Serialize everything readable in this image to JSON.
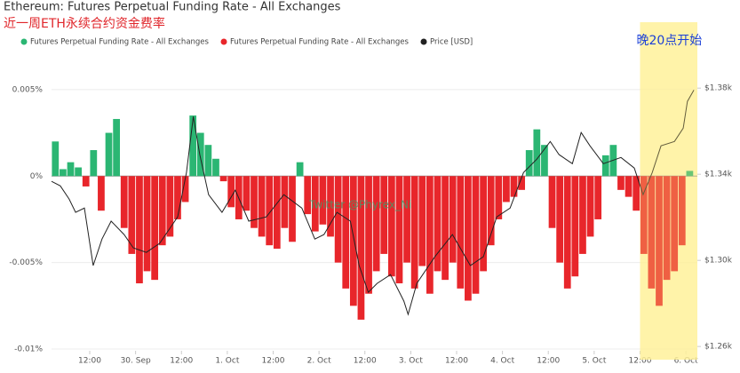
{
  "chart_data": {
    "type": "bar",
    "title": "Ethereum: Futures Perpetual Funding Rate - All Exchanges",
    "subtitle": "近一周ETH永续合约资金费率",
    "annotations": [
      {
        "text": "晚20点开始",
        "x_range": [
          156,
          171
        ]
      },
      {
        "text": "Twitter @Phyrex_Ni"
      }
    ],
    "x": [
      3,
      5,
      7,
      9,
      11,
      13,
      15,
      17,
      19,
      21,
      23,
      25,
      27,
      29,
      31,
      33,
      35,
      37,
      39,
      41,
      43,
      45,
      47,
      49,
      51,
      53,
      55,
      57,
      59,
      61,
      63,
      65,
      67,
      69,
      71,
      73,
      75,
      77,
      79,
      81,
      83,
      85,
      87,
      89,
      91,
      93,
      95,
      97,
      99,
      101,
      103,
      105,
      107,
      109,
      111,
      113,
      115,
      117,
      119,
      121,
      123,
      125,
      127,
      129,
      131,
      133,
      135,
      137,
      139,
      141,
      143,
      145,
      147,
      149,
      151,
      153,
      155,
      157,
      159,
      161,
      163,
      165,
      167,
      169
    ],
    "xlim": [
      2,
      171
    ],
    "xticks": [
      {
        "value": 12,
        "label": "12:00"
      },
      {
        "value": 24,
        "label": "30. Sep"
      },
      {
        "value": 36,
        "label": "12:00"
      },
      {
        "value": 48,
        "label": "1. Oct"
      },
      {
        "value": 60,
        "label": "12:00"
      },
      {
        "value": 72,
        "label": "2. Oct"
      },
      {
        "value": 84,
        "label": "12:00"
      },
      {
        "value": 96,
        "label": "3. Oct"
      },
      {
        "value": 108,
        "label": "12:00"
      },
      {
        "value": 120,
        "label": "4. Oct"
      },
      {
        "value": 132,
        "label": "12:00"
      },
      {
        "value": 144,
        "label": "5. Oct"
      },
      {
        "value": 156,
        "label": "12:00"
      },
      {
        "value": 168,
        "label": "6. Oct"
      }
    ],
    "ylim": [
      -0.0101,
      0.0072
    ],
    "yticks": [
      {
        "value": 0.005,
        "label": "0.005%"
      },
      {
        "value": 0,
        "label": "0%"
      },
      {
        "value": -0.005,
        "label": "-0.005%"
      },
      {
        "value": -0.01,
        "label": "-0.01%"
      }
    ],
    "y2lim": [
      1258,
      1397
    ],
    "y2ticks": [
      {
        "value": 1380,
        "label": "$1.38k"
      },
      {
        "value": 1340,
        "label": "$1.34k"
      },
      {
        "value": 1300,
        "label": "$1.30k"
      },
      {
        "value": 1260,
        "label": "$1.26k"
      }
    ],
    "grid": true,
    "series": [
      {
        "name": "Futures Perpetual Funding Rate - All Exchanges",
        "type": "bar",
        "color": "#2bb673",
        "values": [
          0.002,
          0.0004,
          0.0008,
          0.0005,
          null,
          0.0015,
          null,
          0.0025,
          0.0033,
          null,
          null,
          null,
          null,
          null,
          null,
          null,
          null,
          null,
          0.0035,
          0.0025,
          0.0018,
          0.001,
          null,
          null,
          null,
          null,
          null,
          null,
          null,
          null,
          null,
          null,
          0.0008,
          null,
          null,
          null,
          null,
          null,
          null,
          null,
          null,
          null,
          null,
          null,
          null,
          null,
          null,
          null,
          null,
          null,
          null,
          null,
          null,
          null,
          null,
          null,
          null,
          null,
          null,
          null,
          null,
          null,
          0.0015,
          0.0027,
          0.0018,
          null,
          null,
          null,
          null,
          null,
          null,
          null,
          0.0012,
          0.0018,
          null,
          null,
          null,
          null,
          null,
          null,
          null,
          null,
          null,
          0.0003
        ]
      },
      {
        "name": "Futures Perpetual Funding Rate - All Exchanges",
        "type": "bar",
        "color": "#e8262b",
        "values": [
          null,
          null,
          null,
          null,
          -0.0006,
          null,
          -0.002,
          null,
          null,
          -0.003,
          -0.0045,
          -0.0062,
          -0.0055,
          -0.006,
          -0.004,
          -0.0035,
          -0.0025,
          -0.0015,
          null,
          null,
          null,
          null,
          -0.0003,
          -0.0018,
          -0.0025,
          -0.002,
          -0.003,
          -0.0035,
          -0.004,
          -0.0042,
          -0.003,
          -0.0038,
          null,
          -0.0022,
          -0.0032,
          -0.0028,
          -0.0035,
          -0.005,
          -0.0065,
          -0.0075,
          -0.0083,
          -0.0068,
          -0.0055,
          -0.0045,
          -0.0058,
          -0.0062,
          -0.005,
          -0.0065,
          -0.0052,
          -0.0068,
          -0.0055,
          -0.006,
          -0.005,
          -0.0065,
          -0.0072,
          -0.0068,
          -0.0055,
          -0.004,
          -0.0025,
          -0.0015,
          -0.0012,
          -0.0008,
          null,
          null,
          null,
          -0.003,
          -0.005,
          -0.0065,
          -0.0058,
          -0.0045,
          -0.0035,
          -0.0025,
          null,
          null,
          -0.0008,
          -0.0012,
          -0.002,
          -0.0045,
          -0.0065,
          -0.0075,
          -0.006,
          -0.0055,
          -0.004,
          null
        ]
      },
      {
        "name": "Price [USD]",
        "type": "line",
        "color": "#222222",
        "axis": "y2",
        "x": [
          2,
          4.3,
          6.6,
          8.3,
          10.6,
          12.9,
          15.2,
          17.6,
          21,
          23.4,
          26.8,
          30.3,
          35,
          37.3,
          39.1,
          40.8,
          43.1,
          46.6,
          50.1,
          53.6,
          58.2,
          62.8,
          67.5,
          70.9,
          73.3,
          76.7,
          80.2,
          82.5,
          84.9,
          87.2,
          90.7,
          94.2,
          95.3,
          97.6,
          102.3,
          106.9,
          111.6,
          115,
          118.5,
          122,
          125.5,
          129,
          132.5,
          134.8,
          138.3,
          140.6,
          142.9,
          146.4,
          151,
          154.5,
          156.8,
          159.2,
          161.5,
          165,
          167.3,
          168.4,
          170.1
        ],
        "values": [
          1336.7,
          1334.6,
          1328.5,
          1322.3,
          1324.3,
          1297.6,
          1309.9,
          1318.2,
          1312,
          1305.8,
          1303.7,
          1307.9,
          1320.2,
          1340.8,
          1366.8,
          1349.1,
          1330.5,
          1322.3,
          1332.6,
          1318.2,
          1320.2,
          1330.5,
          1324.3,
          1309.9,
          1312,
          1322.3,
          1318.2,
          1297.6,
          1285.2,
          1289.3,
          1293.4,
          1281.1,
          1274.9,
          1289.3,
          1301.7,
          1312,
          1297.6,
          1301.7,
          1320.2,
          1324.3,
          1340.8,
          1347,
          1355.2,
          1349.1,
          1344.9,
          1359.4,
          1353.2,
          1344.9,
          1347.8,
          1342.9,
          1330.5,
          1340.8,
          1353.2,
          1355.2,
          1361.4,
          1373.8,
          1379.1
        ]
      }
    ]
  }
}
